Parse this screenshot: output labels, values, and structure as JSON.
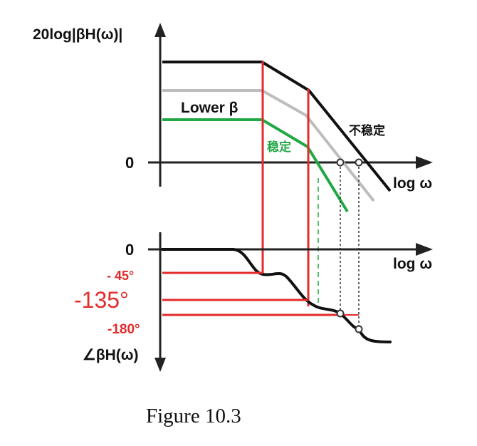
{
  "magnitude_plot": {
    "y_axis_title": "20log|βH(ω)|",
    "zero_label": "0",
    "x_axis_label": "log ω",
    "lower_beta_label": "Lower β",
    "stable_label": "稳定",
    "unstable_label": "不稳定",
    "colors": {
      "unstable": "#111111",
      "mid": "#bdbdbd",
      "stable": "#20a845",
      "marker": "#e32b2b"
    }
  },
  "phase_plot": {
    "zero_label": "0",
    "x_axis_label": "log ω",
    "y_axis_title": "∠βH(ω)",
    "ticks": {
      "minus45": "- 45°",
      "minus135": "-135°",
      "minus180": "-180°"
    }
  },
  "caption": "Figure 10.3"
}
